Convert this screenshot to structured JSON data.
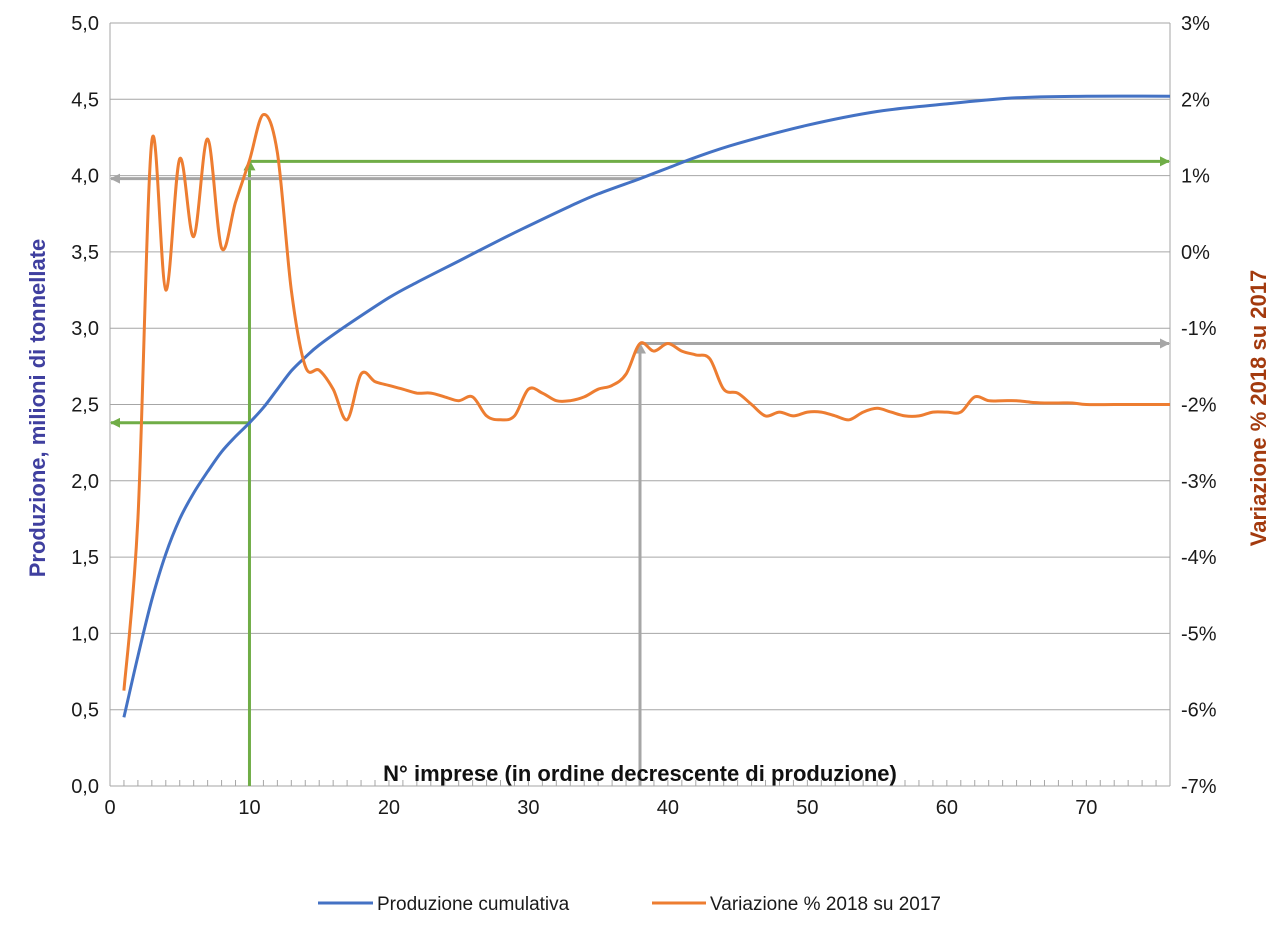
{
  "chart_data": {
    "type": "line",
    "xlabel": "N° imprese (in ordine decrescente di produzione)",
    "ylabel_left": "Produzione, milioni di tonnellate",
    "ylabel_right": "Variazione % 2018 su 2017",
    "xlim": [
      0,
      76
    ],
    "ylim_left": [
      0,
      5
    ],
    "ylim_right": [
      -7,
      3
    ],
    "x_ticks": [
      "0",
      "10",
      "20",
      "30",
      "40",
      "50",
      "60",
      "70"
    ],
    "y_left_ticks": [
      "0,0",
      "0,5",
      "1,0",
      "1,5",
      "2,0",
      "2,5",
      "3,0",
      "3,5",
      "4,0",
      "4,5",
      "5,0"
    ],
    "y_right_ticks": [
      "-7%",
      "-6%",
      "-5%",
      "-4%",
      "-3%",
      "-2%",
      "-1%",
      "0%",
      "1%",
      "2%",
      "3%"
    ],
    "grid": "horizontal",
    "legend_position": "bottom",
    "colors": {
      "cumulative": "#4472C4",
      "variation": "#ED7D31",
      "green_arrows": "#70AD47",
      "gray_arrows": "#A6A6A6",
      "left_axis_title": "#3F3F9F",
      "right_axis_title": "#A33A0E"
    },
    "series": [
      {
        "name": "Produzione cumulativa",
        "axis": "left",
        "x": [
          1,
          2,
          3,
          4,
          5,
          6,
          7,
          8,
          9,
          10,
          11,
          12,
          13,
          14,
          15,
          17,
          20,
          22,
          25,
          28,
          30,
          33,
          35,
          38,
          40,
          42,
          45,
          50,
          55,
          60,
          65,
          70,
          76
        ],
        "values": [
          0.45,
          0.85,
          1.22,
          1.52,
          1.75,
          1.92,
          2.06,
          2.19,
          2.29,
          2.38,
          2.48,
          2.6,
          2.72,
          2.81,
          2.89,
          3.02,
          3.2,
          3.3,
          3.44,
          3.58,
          3.67,
          3.8,
          3.88,
          3.98,
          4.05,
          4.12,
          4.21,
          4.33,
          4.42,
          4.47,
          4.51,
          4.52,
          4.52
        ]
      },
      {
        "name": "Variazione % 2018 su 2017",
        "axis": "right",
        "x": [
          1,
          2,
          3,
          4,
          5,
          6,
          7,
          8,
          9,
          10,
          11,
          12,
          13,
          14,
          15,
          16,
          17,
          18,
          19,
          20,
          21,
          22,
          23,
          24,
          25,
          26,
          27,
          28,
          29,
          30,
          31,
          32,
          33,
          34,
          35,
          36,
          37,
          38,
          39,
          40,
          41,
          42,
          43,
          44,
          45,
          46,
          47,
          48,
          49,
          50,
          51,
          52,
          53,
          54,
          55,
          56,
          57,
          58,
          59,
          60,
          61,
          62,
          63,
          64,
          65,
          66,
          67,
          68,
          69,
          70,
          72,
          74,
          76
        ],
        "values": [
          -5.75,
          -3.5,
          1.45,
          -0.5,
          1.22,
          0.2,
          1.48,
          0.05,
          0.65,
          1.2,
          1.8,
          1.3,
          -0.5,
          -1.5,
          -1.55,
          -1.8,
          -2.2,
          -1.6,
          -1.7,
          -1.75,
          -1.8,
          -1.85,
          -1.85,
          -1.9,
          -1.95,
          -1.9,
          -2.15,
          -2.2,
          -2.15,
          -1.8,
          -1.85,
          -1.95,
          -1.95,
          -1.9,
          -1.8,
          -1.75,
          -1.6,
          -1.2,
          -1.3,
          -1.2,
          -1.3,
          -1.35,
          -1.4,
          -1.8,
          -1.85,
          -2.0,
          -2.15,
          -2.1,
          -2.15,
          -2.1,
          -2.1,
          -2.15,
          -2.2,
          -2.1,
          -2.05,
          -2.1,
          -2.15,
          -2.15,
          -2.1,
          -2.1,
          -2.1,
          -1.9,
          -1.95,
          -1.95,
          -1.95,
          -1.97,
          -1.98,
          -1.98,
          -1.98,
          -2.0,
          -2.0,
          -2.0,
          -2.0
        ]
      }
    ]
  }
}
